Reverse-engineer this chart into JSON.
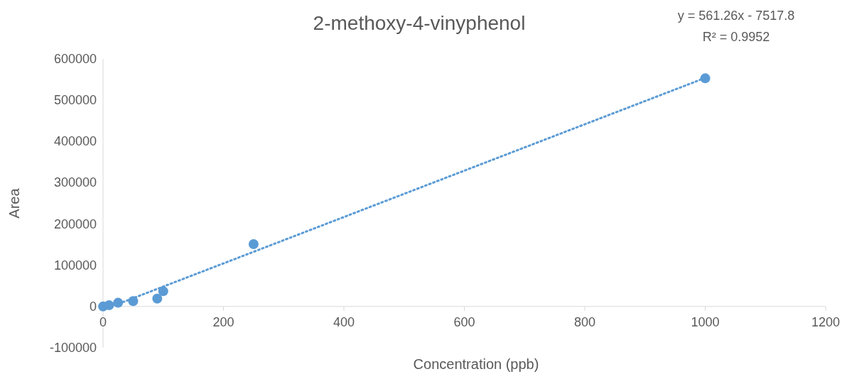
{
  "chart_data": {
    "type": "scatter",
    "title": "2-methoxy-4-vinyphenol",
    "xlabel": "Concentration (ppb)",
    "ylabel": "Area",
    "annotations": [
      "y = 561.26x - 7517.8",
      "R² = 0.9952"
    ],
    "xlim": [
      0,
      1200
    ],
    "xticks": [
      0,
      200,
      400,
      600,
      800,
      1000,
      1200
    ],
    "ylim": [
      -100000,
      600000
    ],
    "yticks": [
      -100000,
      0,
      100000,
      200000,
      300000,
      400000,
      500000,
      600000
    ],
    "grid": false,
    "series": [
      {
        "color": "#5b9bd5",
        "marker": "circle",
        "x": [
          0,
          10,
          25,
          50,
          90,
          100,
          250,
          1000
        ],
        "values": [
          0,
          3000,
          9000,
          13000,
          19000,
          37000,
          151000,
          553000
        ]
      },
      {
        "type": "line",
        "color": "#5b9bd5",
        "line_style": "dotted",
        "marker": "none",
        "x": [
          0,
          1000
        ],
        "values": [
          -8000,
          554000
        ]
      }
    ]
  }
}
